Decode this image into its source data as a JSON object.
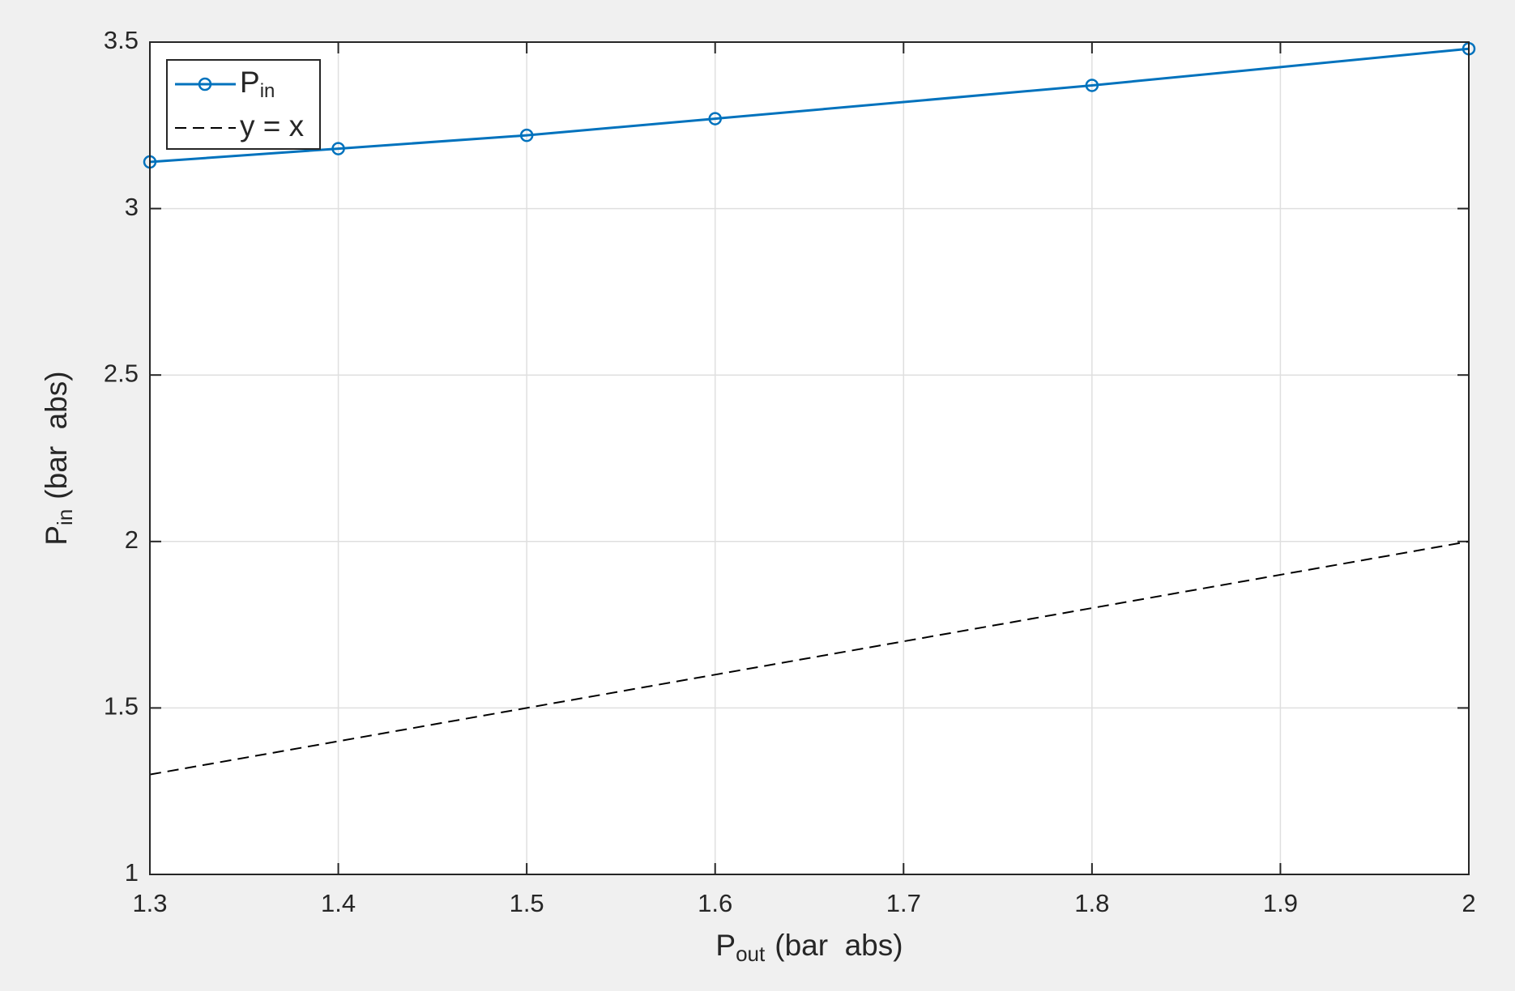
{
  "chart_data": {
    "type": "line",
    "xlabel": {
      "text": "P",
      "sub": "out",
      "unit": "(bar  abs)"
    },
    "ylabel": {
      "text": "P",
      "sub": "in",
      "unit": "(bar  abs)"
    },
    "xlim": [
      1.3,
      2
    ],
    "xticks": [
      1.3,
      1.4,
      1.5,
      1.6,
      1.7,
      1.8,
      1.9,
      2
    ],
    "ylim": [
      1,
      3.5
    ],
    "yticks": [
      1,
      1.5,
      2,
      2.5,
      3,
      3.5
    ],
    "grid": true,
    "legend": "upper-left",
    "series": [
      {
        "name": "P",
        "name_sub": "in",
        "color": "#0072bd",
        "marker": "circle",
        "dash": false,
        "x": [
          1.3,
          1.4,
          1.5,
          1.6,
          1.8,
          2
        ],
        "values": [
          3.14,
          3.18,
          3.22,
          3.27,
          3.37,
          3.48
        ]
      },
      {
        "name": "y = x",
        "color": "#000000",
        "marker": "none",
        "dash": true,
        "x": [
          1.3,
          2
        ],
        "values": [
          1.3,
          2
        ]
      }
    ]
  }
}
